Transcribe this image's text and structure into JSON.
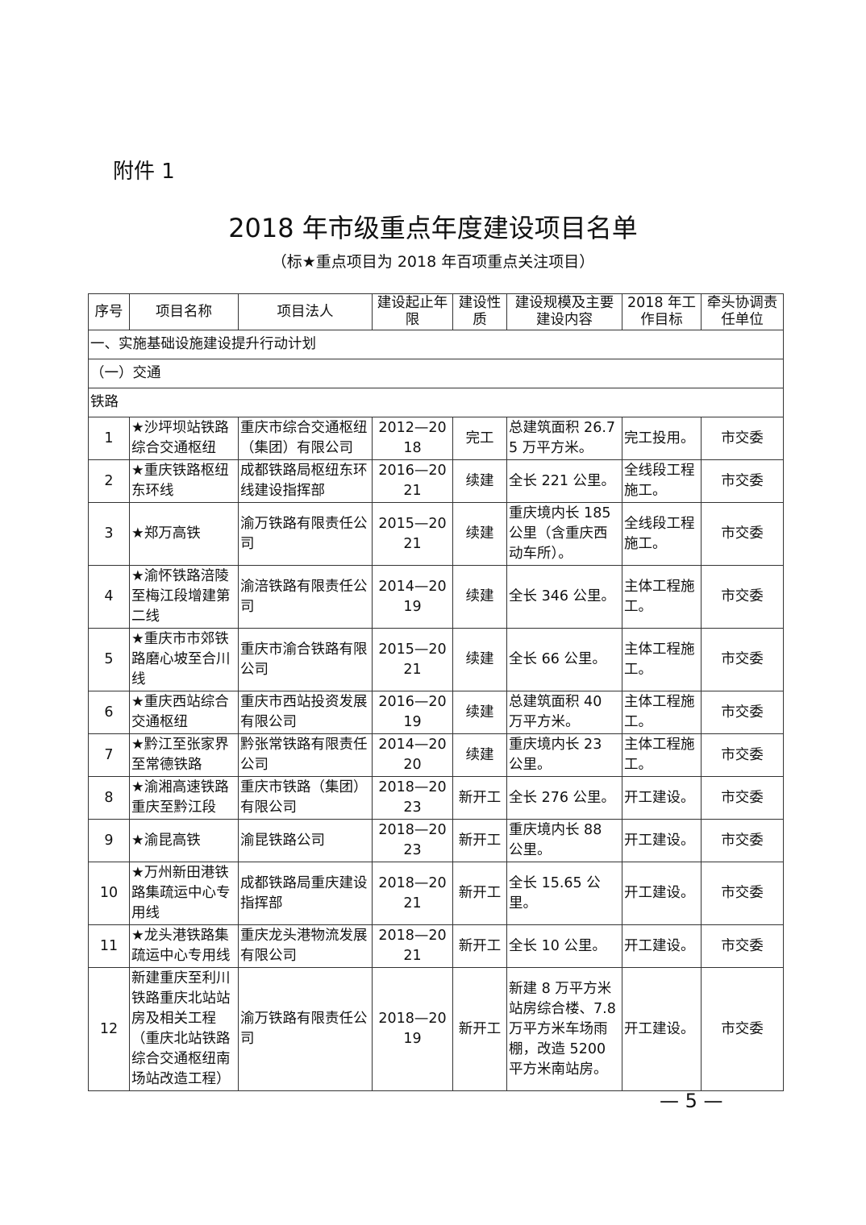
{
  "attachment_label": "附件 1",
  "title": "2018 年市级重点年度建设项目名单",
  "subtitle": "（标★重点项目为 2018 年百项重点关注项目）",
  "table": {
    "headers": [
      "序号",
      "项目名称",
      "项目法人",
      "建设起止年限",
      "建设性质",
      "建设规模及主要建设内容",
      "2018 年工作目标",
      "牵头协调责任单位"
    ],
    "sections": [
      "一、实施基础设施建设提升行动计划",
      "（一）交通",
      "铁路"
    ],
    "rows": [
      [
        "1",
        "★沙坪坝站铁路综合交通枢纽",
        "重庆市综合交通枢纽（集团）有限公司",
        "2012—2018",
        "完工",
        "总建筑面积 26.75 万平方米。",
        "完工投用。",
        "市交委"
      ],
      [
        "2",
        "★重庆铁路枢纽东环线",
        "成都铁路局枢纽东环线建设指挥部",
        "2016—2021",
        "续建",
        "全长 221 公里。",
        "全线段工程施工。",
        "市交委"
      ],
      [
        "3",
        "★郑万高铁",
        "渝万铁路有限责任公司",
        "2015—2021",
        "续建",
        "重庆境内长 185 公里（含重庆西动车所）。",
        "全线段工程施工。",
        "市交委"
      ],
      [
        "4",
        "★渝怀铁路涪陵至梅江段增建第二线",
        "渝涪铁路有限责任公司",
        "2014—2019",
        "续建",
        "全长 346 公里。",
        "主体工程施工。",
        "市交委"
      ],
      [
        "5",
        "★重庆市市郊铁路磨心坡至合川线",
        "重庆市渝合铁路有限公司",
        "2015—2021",
        "续建",
        "全长 66 公里。",
        "主体工程施工。",
        "市交委"
      ],
      [
        "6",
        "★重庆西站综合交通枢纽",
        "重庆市西站投资发展有限公司",
        "2016—2019",
        "续建",
        "总建筑面积 40 万平方米。",
        "主体工程施工。",
        "市交委"
      ],
      [
        "7",
        "★黔江至张家界至常德铁路",
        "黔张常铁路有限责任公司",
        "2014—2020",
        "续建",
        "重庆境内长 23 公里。",
        "主体工程施工。",
        "市交委"
      ],
      [
        "8",
        "★渝湘高速铁路重庆至黔江段",
        "重庆市铁路（集团）有限公司",
        "2018—2023",
        "新开工",
        "全长 276 公里。",
        "开工建设。",
        "市交委"
      ],
      [
        "9",
        "★渝昆高铁",
        "渝昆铁路公司",
        "2018—2023",
        "新开工",
        "重庆境内长 88 公里。",
        "开工建设。",
        "市交委"
      ],
      [
        "10",
        "★万州新田港铁路集疏运中心专用线",
        "成都铁路局重庆建设指挥部",
        "2018—2021",
        "新开工",
        "全长 15.65 公里。",
        "开工建设。",
        "市交委"
      ],
      [
        "11",
        "★龙头港铁路集疏运中心专用线",
        "重庆龙头港物流发展有限公司",
        "2018—2021",
        "新开工",
        "全长 10 公里。",
        "开工建设。",
        "市交委"
      ],
      [
        "12",
        "新建重庆至利川铁路重庆北站站房及相关工程（重庆北站铁路综合交通枢纽南场站改造工程）",
        "渝万铁路有限责任公司",
        "2018—2019",
        "新开工",
        "新建 8 万平方米站房综合楼、7.8 万平方米车场雨棚，改造 5200 平方米南站房。",
        "开工建设。",
        "市交委"
      ]
    ]
  },
  "page_number": "— 5 —"
}
